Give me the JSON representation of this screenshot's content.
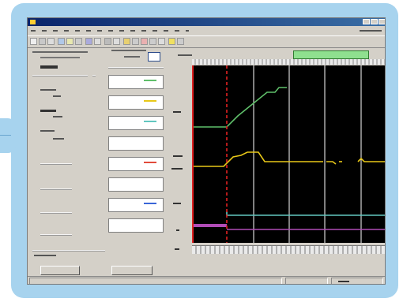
{
  "colors": {
    "frame": "#a7d3ee",
    "window": "#d4d0c8",
    "plot_bg": "#000000",
    "trace_green": "#5fbf6a",
    "trace_yellow": "#e8c818",
    "trace_cyan": "#62c7c0",
    "trace_magenta": "#b04cb6",
    "trace_red": "#e24b3b",
    "trace_blue": "#3a66d8",
    "cursor_red": "#e02020",
    "status_green": "#8fe08f"
  },
  "icons": [
    "app-icon",
    "minimize-icon",
    "maximize-icon",
    "close-icon",
    "monitor-icon"
  ],
  "window": {
    "title": ""
  },
  "legend": [
    {
      "color_key": "trace_green"
    },
    {
      "color_key": "trace_yellow"
    },
    {
      "color_key": "trace_cyan"
    },
    {
      "color_key": "trace_red"
    },
    {
      "color_key": "trace_blue"
    }
  ]
}
